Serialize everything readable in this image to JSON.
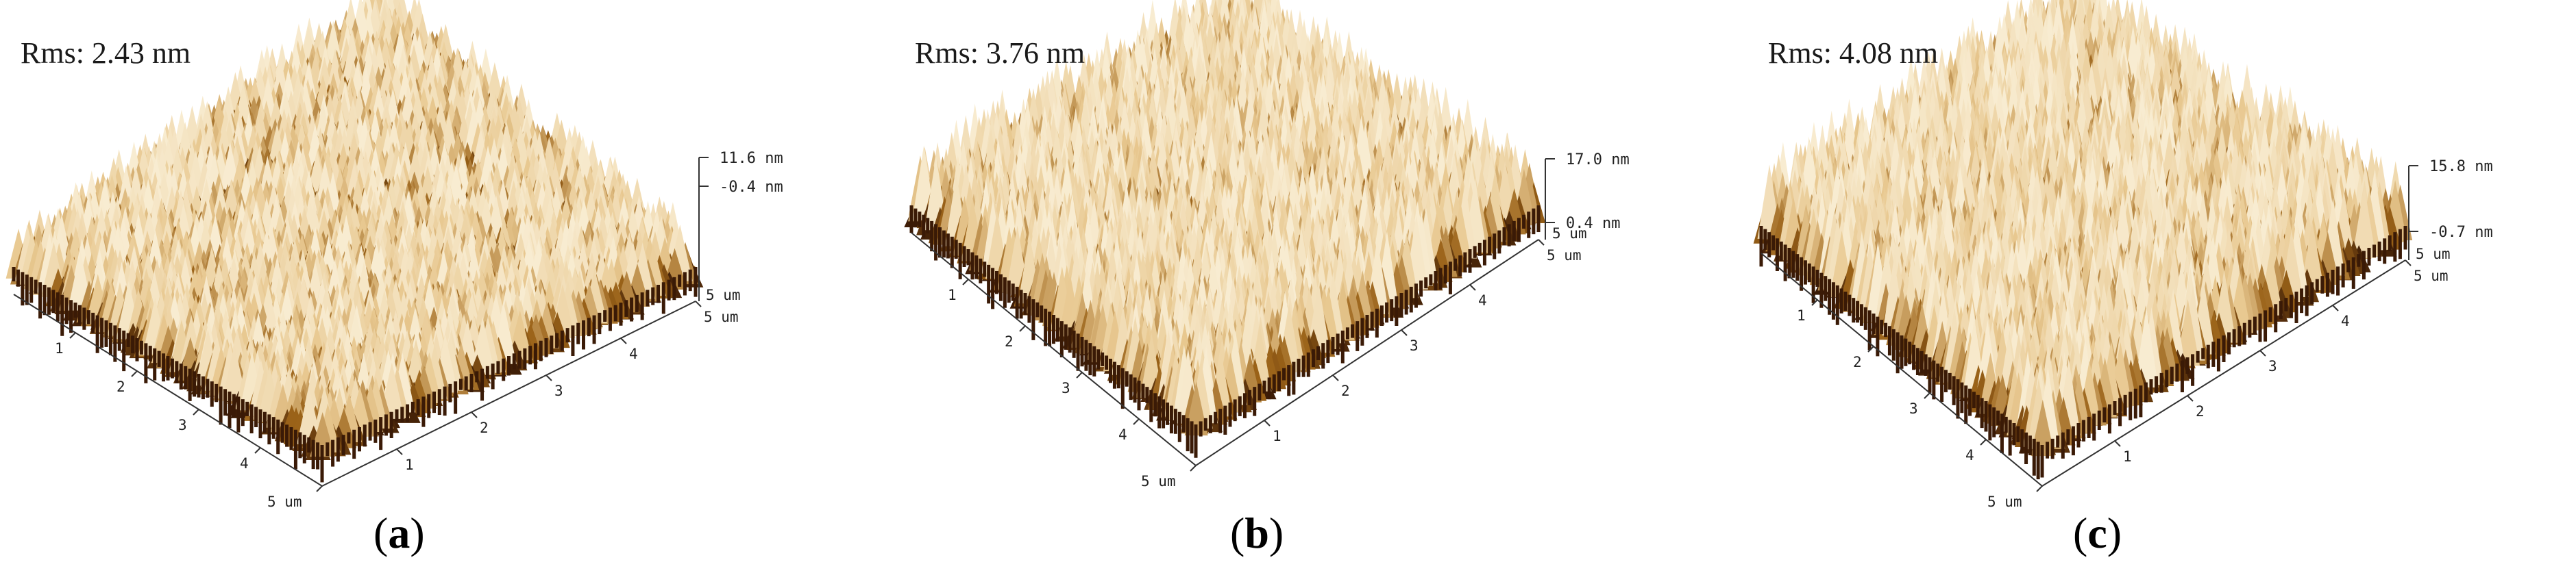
{
  "panels": [
    {
      "id": "a",
      "rms": "Rms: 2.43 nm",
      "caption_letter": "a",
      "z_top": "11.6 nm",
      "z_mid": "-0.4 nm",
      "z_bottom": "5 um",
      "x_ticks": [
        "1",
        "2",
        "3",
        "4",
        "5 um"
      ],
      "y_ticks": [
        "1",
        "2",
        "3",
        "4",
        "5 um"
      ],
      "roughness": 2.43
    },
    {
      "id": "b",
      "rms": "Rms: 3.76 nm",
      "caption_letter": "b",
      "z_top": "17.0 nm",
      "z_mid": "0.4 nm",
      "z_bottom": "5 um",
      "x_ticks": [
        "1",
        "2",
        "3",
        "4",
        "5 um"
      ],
      "y_ticks": [
        "1",
        "2",
        "3",
        "4",
        "5 um"
      ],
      "roughness": 3.76
    },
    {
      "id": "c",
      "rms": "Rms: 4.08 nm",
      "caption_letter": "c",
      "z_top": "15.8 nm",
      "z_mid": "-0.7 nm",
      "z_bottom": "5 um",
      "x_ticks": [
        "1",
        "2",
        "3",
        "4",
        "5 um"
      ],
      "y_ticks": [
        "1",
        "2",
        "3",
        "4",
        "5 um"
      ],
      "roughness": 4.08
    }
  ],
  "colors": {
    "surface_dark": "#3a1a06",
    "surface_mid": "#9a6218",
    "surface_light": "#e8c890",
    "surface_highlight": "#fbf2dc"
  }
}
